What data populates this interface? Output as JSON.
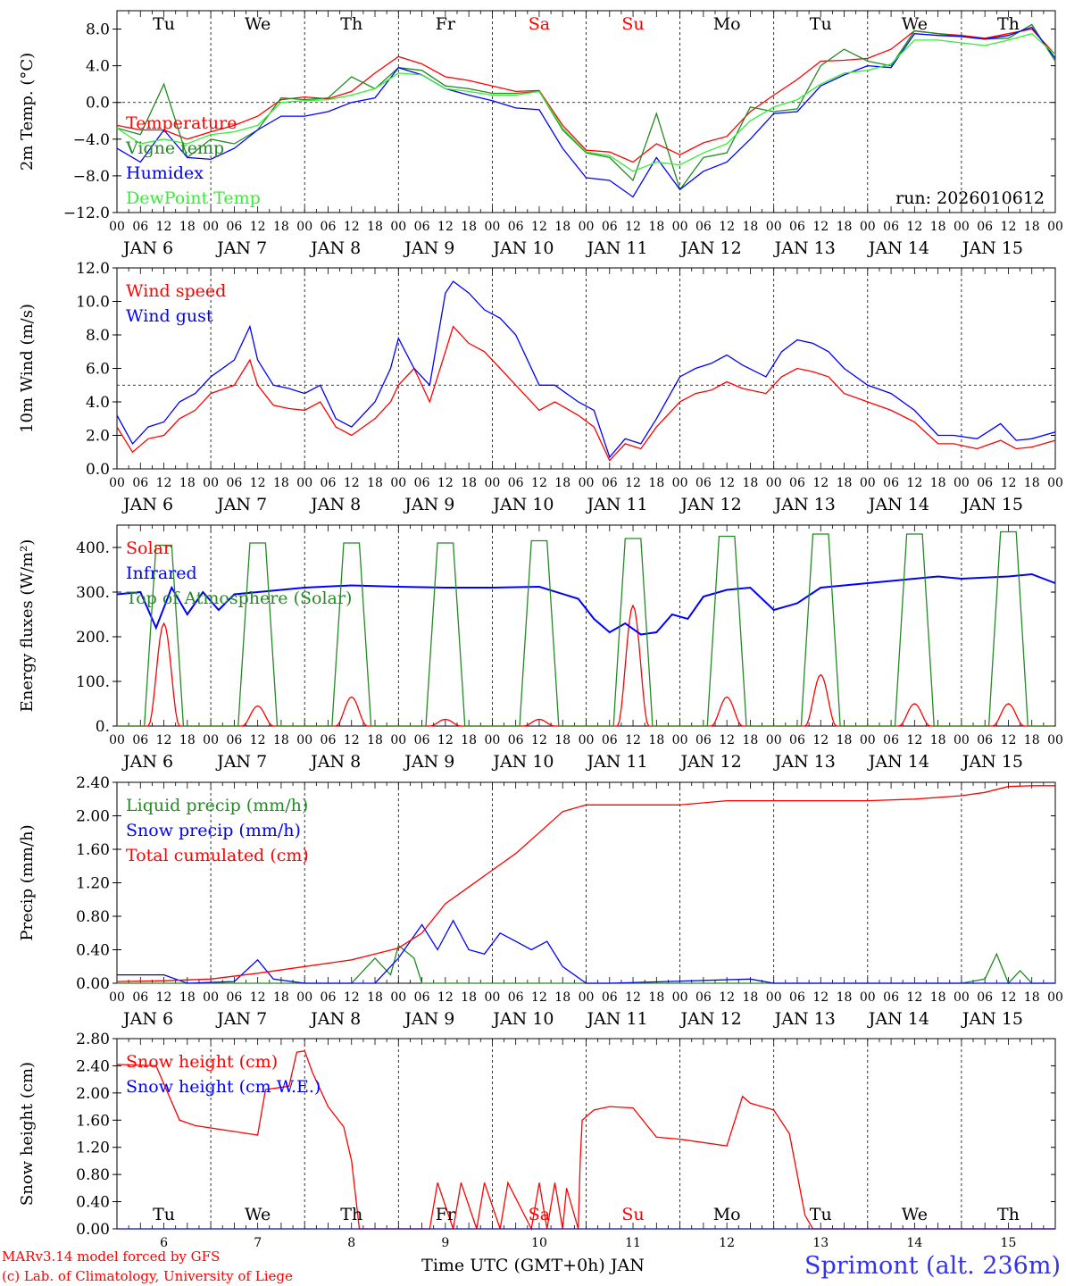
{
  "chart_data": [
    {
      "type": "line",
      "ylabel": "2m Temp. (°C)",
      "ylim": [
        -12,
        10
      ],
      "yticks": [
        "8.0",
        "4.0",
        "0.0",
        "−4.0",
        "−8.0",
        "−12.0"
      ],
      "ytick_values": [
        8,
        4,
        0,
        -4,
        -8,
        -12
      ],
      "ref_line": 0,
      "weekday_labels": [
        "Tu",
        "We",
        "Th",
        "Fr",
        "Sa",
        "Su",
        "Mo",
        "Tu",
        "We",
        "Th"
      ],
      "annotation": "run: 2026010612",
      "series": [
        {
          "name": "Temperature",
          "color": "#ff0000",
          "t": [
            0,
            6,
            12,
            18,
            24,
            30,
            36,
            42,
            48,
            54,
            60,
            66,
            72,
            78,
            84,
            90,
            96,
            102,
            108,
            114,
            120,
            126,
            132,
            138,
            144,
            150,
            156,
            162,
            168,
            174,
            180,
            186,
            192,
            198,
            204,
            210,
            216,
            222,
            228,
            234,
            240
          ],
          "values": [
            -2.5,
            -3,
            -3,
            -4,
            -3.2,
            -2.5,
            -1.5,
            0.3,
            0.6,
            0.4,
            1.2,
            3.2,
            5,
            4.2,
            2.8,
            2.4,
            1.8,
            1.2,
            1.3,
            -2.5,
            -5.2,
            -5.4,
            -6.5,
            -4.5,
            -5.7,
            -4.4,
            -3.7,
            -1,
            0.8,
            2.5,
            4.5,
            4.6,
            4.8,
            5.8,
            7.8,
            7.5,
            7.3,
            7,
            7.5,
            8,
            5.2
          ]
        },
        {
          "name": "Vigne temp",
          "color": "#228b22",
          "t": [
            0,
            6,
            12,
            18,
            24,
            30,
            36,
            42,
            48,
            54,
            60,
            66,
            72,
            78,
            84,
            90,
            96,
            102,
            108,
            114,
            120,
            126,
            132,
            138,
            144,
            150,
            156,
            162,
            168,
            174,
            180,
            186,
            192,
            198,
            204,
            210,
            216,
            222,
            228,
            234,
            240
          ],
          "values": [
            -2.8,
            -3.5,
            2,
            -6,
            -4,
            -4.5,
            -3,
            0.5,
            0.3,
            0.5,
            2.8,
            1.5,
            3.8,
            3.5,
            1.8,
            1.5,
            1,
            1,
            1.2,
            -3,
            -5.5,
            -6,
            -8.5,
            -1.2,
            -9.5,
            -6,
            -5.5,
            -0.5,
            -1,
            -0.7,
            4,
            5.8,
            4.5,
            4,
            7.8,
            7.5,
            7.2,
            6.9,
            7,
            8.5,
            4.5
          ]
        },
        {
          "name": "Humidex",
          "color": "#0000ff",
          "t": [
            0,
            6,
            12,
            18,
            24,
            30,
            36,
            42,
            48,
            54,
            60,
            66,
            72,
            78,
            84,
            90,
            96,
            102,
            108,
            114,
            120,
            126,
            132,
            138,
            144,
            150,
            156,
            162,
            168,
            174,
            180,
            186,
            192,
            198,
            204,
            210,
            216,
            222,
            228,
            234,
            240
          ],
          "values": [
            -5,
            -6.5,
            -3,
            -6,
            -6.2,
            -5,
            -3,
            -1.5,
            -1.5,
            -1,
            0,
            0.5,
            3.8,
            3,
            1.5,
            0.8,
            0.2,
            -0.6,
            -0.8,
            -5,
            -8.2,
            -8.5,
            -10.3,
            -6,
            -9.5,
            -7.5,
            -6.5,
            -4,
            -1.2,
            -1,
            1.8,
            3,
            4,
            3.8,
            7.5,
            7.3,
            7.2,
            6.9,
            7.3,
            8.2,
            4.8
          ]
        },
        {
          "name": "DewPoint Temp",
          "color": "#33ee33",
          "t": [
            0,
            6,
            12,
            18,
            24,
            30,
            36,
            42,
            48,
            54,
            60,
            66,
            72,
            78,
            84,
            90,
            96,
            102,
            108,
            114,
            120,
            126,
            132,
            138,
            144,
            150,
            156,
            162,
            168,
            174,
            180,
            186,
            192,
            198,
            204,
            210,
            216,
            222,
            228,
            234,
            240
          ],
          "values": [
            -2.8,
            -4.5,
            -4,
            -4.5,
            -3.5,
            -3.2,
            -2.5,
            0,
            0.2,
            0.3,
            0.8,
            1.5,
            3.2,
            3,
            1.5,
            1.2,
            0.8,
            0.8,
            1.2,
            -2.8,
            -5.4,
            -5.8,
            -7.5,
            -6.5,
            -6.8,
            -5.5,
            -4.5,
            -2,
            -0.5,
            0.3,
            2,
            3.2,
            3.5,
            4.2,
            6.8,
            6.8,
            6.5,
            6.2,
            6.8,
            7.5,
            5.2
          ]
        }
      ]
    },
    {
      "type": "line",
      "ylabel": "10m Wind (m/s)",
      "ylim": [
        0,
        12
      ],
      "yticks": [
        "12.0",
        "10.0",
        "8.0",
        "6.0",
        "4.0",
        "2.0",
        "0.0"
      ],
      "ytick_values": [
        12,
        10,
        8,
        6,
        4,
        2,
        0
      ],
      "ref_line": 5,
      "series": [
        {
          "name": "Wind speed",
          "color": "#ff0000",
          "t": [
            0,
            4,
            8,
            12,
            16,
            20,
            24,
            30,
            34,
            36,
            40,
            44,
            48,
            52,
            56,
            60,
            66,
            70,
            72,
            76,
            80,
            84,
            86,
            90,
            94,
            98,
            102,
            108,
            112,
            118,
            122,
            126,
            130,
            134,
            138,
            144,
            148,
            152,
            156,
            160,
            166,
            170,
            174,
            178,
            182,
            186,
            192,
            198,
            204,
            210,
            214,
            220,
            226,
            230,
            234,
            240
          ],
          "values": [
            2.5,
            1,
            1.8,
            2,
            3,
            3.5,
            4.5,
            5,
            6.5,
            5,
            3.8,
            3.6,
            3.5,
            4,
            2.5,
            2,
            3,
            4,
            5,
            6,
            4,
            7,
            8.5,
            7.5,
            7,
            6,
            5,
            3.5,
            4,
            3.2,
            2.5,
            0.5,
            1.5,
            1.2,
            2.5,
            4,
            4.5,
            4.7,
            5.2,
            4.8,
            4.5,
            5.5,
            6,
            5.8,
            5.5,
            4.5,
            4,
            3.5,
            2.8,
            1.5,
            1.5,
            1.2,
            1.7,
            1.2,
            1.3,
            1.7
          ]
        },
        {
          "name": "Wind gust",
          "color": "#0000ff",
          "t": [
            0,
            4,
            8,
            12,
            16,
            20,
            24,
            30,
            34,
            36,
            40,
            44,
            48,
            52,
            56,
            60,
            66,
            70,
            72,
            76,
            80,
            84,
            86,
            90,
            94,
            98,
            102,
            108,
            112,
            118,
            122,
            126,
            130,
            134,
            138,
            144,
            148,
            152,
            156,
            160,
            166,
            170,
            174,
            178,
            182,
            186,
            192,
            198,
            204,
            210,
            214,
            220,
            226,
            230,
            234,
            240
          ],
          "values": [
            3.2,
            1.5,
            2.5,
            2.8,
            4,
            4.5,
            5.5,
            6.5,
            8.5,
            6.5,
            5,
            4.8,
            4.5,
            5,
            3,
            2.5,
            4,
            6,
            7.8,
            6,
            5,
            10.5,
            11.2,
            10.5,
            9.5,
            9,
            8,
            5,
            5,
            4,
            3.5,
            0.7,
            1.8,
            1.5,
            3,
            5.5,
            6,
            6.3,
            6.8,
            6.2,
            5.5,
            7,
            7.7,
            7.5,
            7,
            6,
            5,
            4.5,
            3.5,
            2,
            2,
            1.8,
            2.7,
            1.7,
            1.8,
            2.2
          ]
        }
      ]
    },
    {
      "type": "line",
      "ylabel": "Energy fluxes (W/m²)",
      "ylim": [
        0,
        450
      ],
      "yticks": [
        "400.",
        "300.",
        "200.",
        "100.",
        "0."
      ],
      "ytick_values": [
        400,
        300,
        200,
        100,
        0
      ],
      "series": [
        {
          "name": "Solar",
          "color": "#ff0000",
          "daily_peaks": [
            230,
            45,
            65,
            15,
            15,
            270,
            65,
            115,
            50,
            50
          ]
        },
        {
          "name": "Infrared",
          "color": "#0000ff",
          "t": [
            0,
            6,
            10,
            14,
            18,
            22,
            26,
            30,
            36,
            48,
            60,
            72,
            84,
            96,
            108,
            118,
            122,
            126,
            130,
            134,
            138,
            142,
            146,
            150,
            156,
            162,
            168,
            174,
            180,
            186,
            192,
            198,
            204,
            210,
            216,
            228,
            234,
            240
          ],
          "values": [
            295,
            300,
            220,
            310,
            250,
            300,
            260,
            295,
            300,
            310,
            315,
            312,
            310,
            310,
            312,
            285,
            240,
            210,
            230,
            205,
            210,
            250,
            240,
            290,
            305,
            310,
            260,
            275,
            310,
            315,
            320,
            325,
            330,
            335,
            330,
            335,
            340,
            320
          ]
        },
        {
          "name": "Top of Atmosphere (Solar)",
          "color": "#228b22",
          "daily_peaks": [
            405,
            410,
            410,
            410,
            415,
            420,
            425,
            430,
            430,
            435
          ]
        }
      ]
    },
    {
      "type": "line",
      "ylabel": "Precip (mm/h)",
      "ylim": [
        0,
        2.4
      ],
      "yticks": [
        "2.40",
        "2.00",
        "1.60",
        "1.20",
        "0.80",
        "0.40",
        "0.00"
      ],
      "ytick_values": [
        2.4,
        2,
        1.6,
        1.2,
        0.8,
        0.4,
        0
      ],
      "series": [
        {
          "name": "Liquid precip (mm/h)",
          "color": "#228b22",
          "t": [
            0,
            60,
            66,
            70,
            72,
            76,
            78,
            84,
            96,
            120,
            216,
            222,
            225,
            228,
            231,
            234,
            240
          ],
          "values": [
            0,
            0,
            0.3,
            0.1,
            0.45,
            0.3,
            0,
            0,
            0,
            0,
            0,
            0.05,
            0.35,
            0,
            0.15,
            0,
            0
          ]
        },
        {
          "name": "Snow precip (mm/h)",
          "color": "#0000ff",
          "t": [
            0,
            12,
            18,
            30,
            36,
            40,
            48,
            66,
            72,
            78,
            82,
            86,
            90,
            94,
            98,
            102,
            106,
            110,
            114,
            120,
            126,
            162,
            168,
            216,
            240
          ],
          "values": [
            0.1,
            0.1,
            0,
            0.02,
            0.28,
            0.05,
            0,
            0,
            0.3,
            0.7,
            0.4,
            0.75,
            0.4,
            0.35,
            0.6,
            0.5,
            0.4,
            0.5,
            0.2,
            0,
            0,
            0.05,
            0,
            0,
            0
          ]
        },
        {
          "name": "Total cumulated (cm)",
          "color": "#ff0000",
          "t": [
            0,
            12,
            24,
            36,
            48,
            60,
            66,
            72,
            78,
            84,
            90,
            96,
            102,
            108,
            114,
            120,
            132,
            144,
            156,
            168,
            180,
            192,
            204,
            216,
            222,
            228,
            234,
            240
          ],
          "values": [
            0.02,
            0.03,
            0.05,
            0.12,
            0.2,
            0.28,
            0.35,
            0.42,
            0.6,
            0.95,
            1.15,
            1.35,
            1.55,
            1.8,
            2.05,
            2.13,
            2.13,
            2.13,
            2.18,
            2.18,
            2.18,
            2.18,
            2.2,
            2.24,
            2.28,
            2.35,
            2.36,
            2.36
          ]
        }
      ]
    },
    {
      "type": "line",
      "ylabel": "Snow height (cm)",
      "ylim": [
        0,
        2.8
      ],
      "yticks": [
        "2.80",
        "2.40",
        "2.00",
        "1.60",
        "1.20",
        "0.80",
        "0.40",
        "0.00"
      ],
      "ytick_values": [
        2.8,
        2.4,
        2,
        1.6,
        1.2,
        0.8,
        0.4,
        0
      ],
      "weekday_labels": [
        "Tu",
        "We",
        "Th",
        "Fr",
        "Sa",
        "Su",
        "Mo",
        "Tu",
        "We",
        "Th"
      ],
      "x_day_ticks": [
        "6",
        "7",
        "8",
        "9",
        "10",
        "11",
        "12",
        "13",
        "14",
        "15"
      ],
      "series": [
        {
          "name": "Snow height (cm)",
          "color": "#ff0000",
          "t": [
            0,
            10,
            16,
            20,
            36,
            38,
            44,
            46,
            48,
            50,
            54,
            58,
            60,
            62,
            80,
            82,
            86,
            88,
            92,
            94,
            98,
            100,
            106,
            108,
            110,
            112,
            114,
            115,
            118,
            118.5,
            119,
            122,
            126,
            132,
            138,
            144,
            156,
            160,
            162,
            168,
            172,
            176,
            178,
            240
          ],
          "values": [
            2.42,
            2.4,
            1.6,
            1.52,
            1.38,
            2.05,
            2.1,
            2.6,
            2.62,
            2.3,
            1.8,
            1.5,
            1,
            0,
            0,
            0.68,
            0,
            0.68,
            0,
            0.68,
            0,
            0.68,
            0,
            0.68,
            0,
            0.68,
            0,
            0.6,
            0,
            1,
            1.6,
            1.75,
            1.8,
            1.78,
            1.35,
            1.32,
            1.22,
            1.95,
            1.85,
            1.75,
            1.4,
            0.2,
            0,
            0
          ]
        },
        {
          "name": "Snow height (cm W.E.)",
          "color": "#0000ff",
          "t": [
            0,
            240
          ],
          "values": [
            0,
            0
          ]
        }
      ]
    }
  ],
  "x_axis": {
    "hour_ticks": [
      "00",
      "06",
      "12",
      "18"
    ],
    "day_labels": [
      "JAN   6",
      "JAN   7",
      "JAN   8",
      "JAN   9",
      "JAN  10",
      "JAN  11",
      "JAN  12",
      "JAN  13",
      "JAN  14",
      "JAN  15"
    ],
    "title": "Time UTC (GMT+0h) JAN"
  },
  "weekend_color": "#ff0000",
  "weekend_indices": [
    4,
    5
  ],
  "footer": {
    "model": "MARv3.14 model forced by GFS",
    "credit": "(c) Lab. of Climatology, University of Liege",
    "location": "Sprimont (alt. 236m)"
  }
}
